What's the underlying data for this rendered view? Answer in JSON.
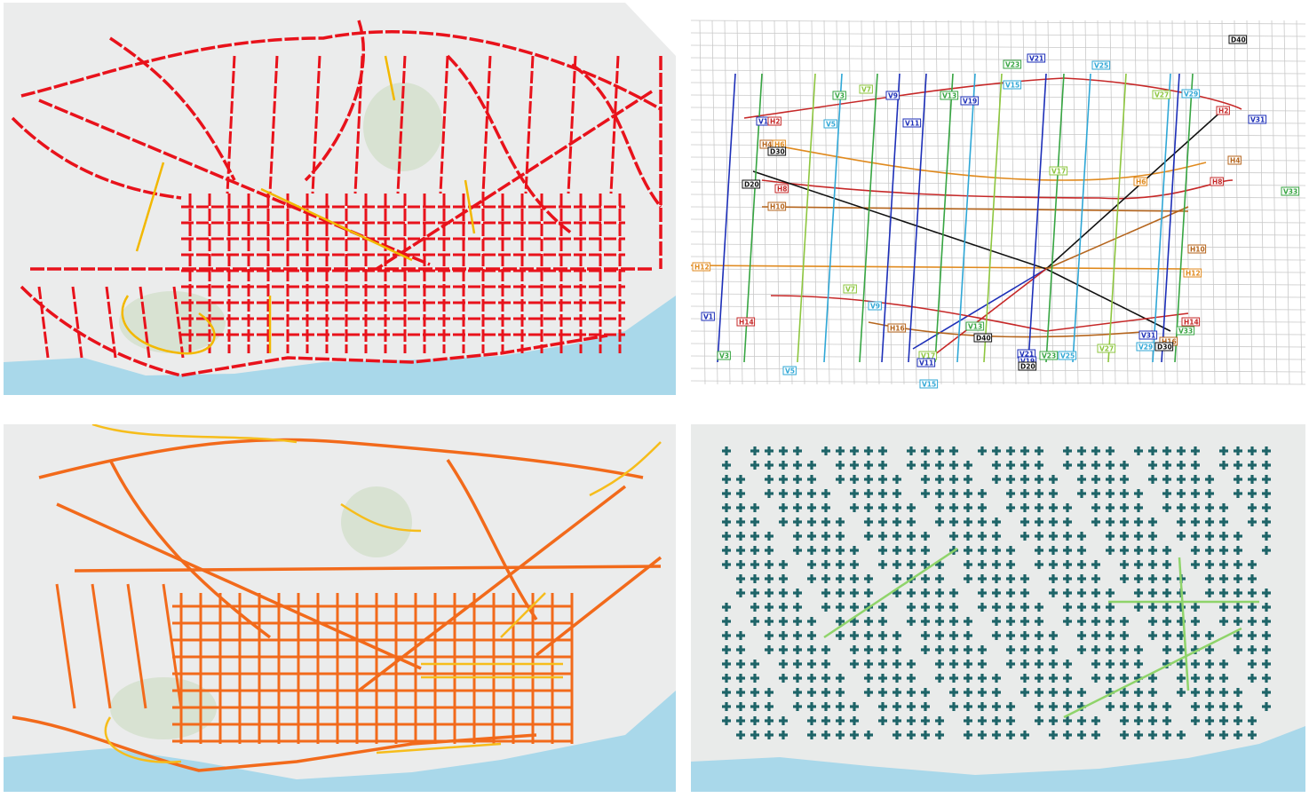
{
  "panels": [
    {
      "id": "p-tl",
      "scheme": "road network, dashed red",
      "colors": {
        "main": "#e8121b",
        "secondary": "#f2b800",
        "sea": "#a9d8ea"
      }
    },
    {
      "id": "p-tr",
      "scheme": "bus lines map with line codes",
      "colors": {
        "background": "#ffffff"
      }
    },
    {
      "id": "p-bl",
      "scheme": "road network, orange",
      "colors": {
        "main": "#f26a1b",
        "secondary": "#f6bd1b",
        "sea": "#a9d8ea"
      }
    },
    {
      "id": "p-br",
      "scheme": "street segments, teal",
      "colors": {
        "main": "#1e6468",
        "secondary": "#8fd46a",
        "sea": "#a9d8ea"
      }
    }
  ],
  "bus_labels": [
    {
      "code": "D40",
      "color": "#111111"
    },
    {
      "code": "V21",
      "color": "#1d2fb8"
    },
    {
      "code": "V23",
      "color": "#37a542"
    },
    {
      "code": "V25",
      "color": "#2fa7d6"
    },
    {
      "code": "V15",
      "color": "#2fa7d6"
    },
    {
      "code": "V7",
      "color": "#8dc63f"
    },
    {
      "code": "V9",
      "color": "#1d2fb8"
    },
    {
      "code": "V13",
      "color": "#37a542"
    },
    {
      "code": "V19",
      "color": "#1d2fb8"
    },
    {
      "code": "V3",
      "color": "#37a542"
    },
    {
      "code": "V27",
      "color": "#8dc63f"
    },
    {
      "code": "V29",
      "color": "#2fa7d6"
    },
    {
      "code": "V1",
      "color": "#1d2fb8"
    },
    {
      "code": "H2",
      "color": "#c62828"
    },
    {
      "code": "V5",
      "color": "#2fa7d6"
    },
    {
      "code": "V11",
      "color": "#1d2fb8"
    },
    {
      "code": "H2",
      "color": "#c62828"
    },
    {
      "code": "V31",
      "color": "#1d2fb8"
    },
    {
      "code": "H4",
      "color": "#b5651d"
    },
    {
      "code": "H6",
      "color": "#e08a1e"
    },
    {
      "code": "D30",
      "color": "#111111"
    },
    {
      "code": "V17",
      "color": "#8dc63f"
    },
    {
      "code": "H4",
      "color": "#b5651d"
    },
    {
      "code": "D20",
      "color": "#111111"
    },
    {
      "code": "H8",
      "color": "#c62828"
    },
    {
      "code": "H6",
      "color": "#e08a1e"
    },
    {
      "code": "H8",
      "color": "#c62828"
    },
    {
      "code": "V33",
      "color": "#37a542"
    },
    {
      "code": "H10",
      "color": "#b5651d"
    },
    {
      "code": "H10",
      "color": "#b5651d"
    },
    {
      "code": "H12",
      "color": "#e08a1e"
    },
    {
      "code": "H12",
      "color": "#e08a1e"
    },
    {
      "code": "V7",
      "color": "#8dc63f"
    },
    {
      "code": "V9",
      "color": "#2fa7d6"
    },
    {
      "code": "V1",
      "color": "#1d2fb8"
    },
    {
      "code": "H14",
      "color": "#c62828"
    },
    {
      "code": "H16",
      "color": "#b5651d"
    },
    {
      "code": "V13",
      "color": "#37a542"
    },
    {
      "code": "H14",
      "color": "#c62828"
    },
    {
      "code": "V31",
      "color": "#1d2fb8"
    },
    {
      "code": "D40",
      "color": "#111111"
    },
    {
      "code": "V33",
      "color": "#37a542"
    },
    {
      "code": "H16",
      "color": "#b5651d"
    },
    {
      "code": "V3",
      "color": "#37a542"
    },
    {
      "code": "V17",
      "color": "#8dc63f"
    },
    {
      "code": "V21",
      "color": "#1d2fb8"
    },
    {
      "code": "V23",
      "color": "#37a542"
    },
    {
      "code": "V25",
      "color": "#2fa7d6"
    },
    {
      "code": "V27",
      "color": "#8dc63f"
    },
    {
      "code": "V29",
      "color": "#2fa7d6"
    },
    {
      "code": "D30",
      "color": "#111111"
    },
    {
      "code": "V5",
      "color": "#2fa7d6"
    },
    {
      "code": "V11",
      "color": "#1d2fb8"
    },
    {
      "code": "V19",
      "color": "#1d2fb8"
    },
    {
      "code": "D20",
      "color": "#111111"
    },
    {
      "code": "V15",
      "color": "#2fa7d6"
    }
  ]
}
